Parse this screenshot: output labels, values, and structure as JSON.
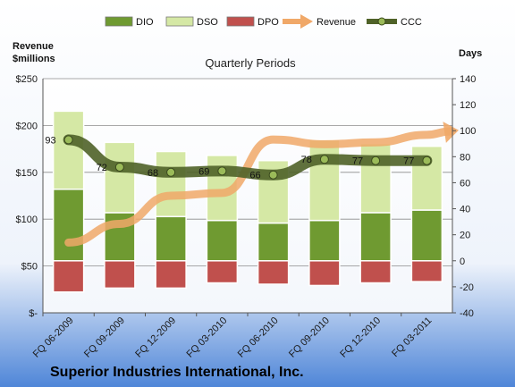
{
  "chart_data": {
    "type": "bar",
    "title": "Quarterly Periods",
    "subtitle": "Superior Industries International, Inc.",
    "left_axis_title": [
      "Revenue",
      "$millions"
    ],
    "right_axis_title": "Days",
    "left_ticks": [
      "$-",
      "$50",
      "$100",
      "$150",
      "$200",
      "$250"
    ],
    "right_ticks": [
      "-40",
      "-20",
      "0",
      "20",
      "40",
      "60",
      "80",
      "100",
      "120",
      "140"
    ],
    "left_range": [
      0,
      250
    ],
    "right_range": [
      -40,
      140
    ],
    "categories": [
      "FQ 06-2009",
      "FQ 09-2009",
      "FQ 12-2009",
      "FQ 03-2010",
      "FQ 06-2010",
      "FQ 09-2010",
      "FQ 12-2010",
      "FQ 03-2011"
    ],
    "legend_position": "top",
    "grid": true,
    "series": [
      {
        "name": "DIO",
        "kind": "stacked-bar",
        "axis": "right",
        "color": "#6f9a31",
        "values": [
          55,
          37,
          34,
          31,
          29,
          31,
          37,
          39
        ]
      },
      {
        "name": "DSO",
        "kind": "stacked-bar",
        "axis": "right",
        "color": "#d5e8a5",
        "values": [
          60,
          54,
          50,
          50,
          48,
          62,
          53,
          49
        ]
      },
      {
        "name": "DPO",
        "kind": "negative-bar",
        "axis": "right",
        "color": "#c0504d",
        "values": [
          -24,
          -21,
          -21,
          -17,
          -18,
          -19,
          -17,
          -16
        ]
      },
      {
        "name": "Revenue",
        "kind": "line",
        "axis": "left",
        "color": "#f0a868",
        "values": [
          75,
          95,
          125,
          128,
          185,
          180,
          182,
          190
        ]
      },
      {
        "name": "CCC",
        "kind": "line",
        "axis": "right",
        "color": "#4f6228",
        "values": [
          93,
          72,
          68,
          69,
          66,
          78,
          77,
          77
        ],
        "labels": [
          "93",
          "72",
          "68",
          "69",
          "66",
          "78",
          "77",
          "77"
        ]
      }
    ]
  }
}
